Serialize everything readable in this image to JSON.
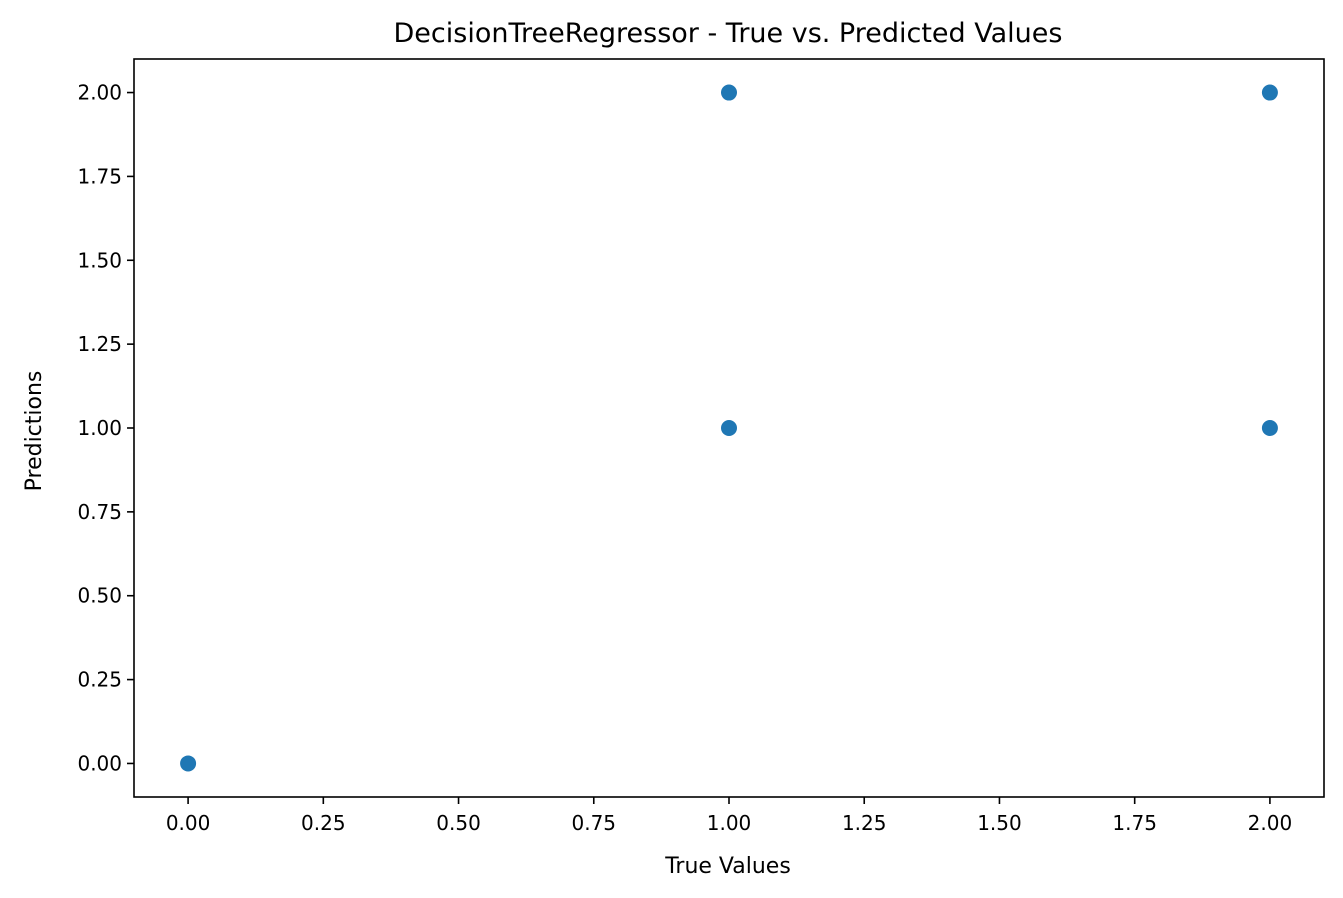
{
  "chart_data": {
    "type": "scatter",
    "title": "DecisionTreeRegressor - True vs. Predicted Values",
    "xlabel": "True Values",
    "ylabel": "Predictions",
    "xlim": [
      -0.1,
      2.1
    ],
    "ylim": [
      -0.1,
      2.1
    ],
    "xticks": [
      0.0,
      0.25,
      0.5,
      0.75,
      1.0,
      1.25,
      1.5,
      1.75,
      2.0
    ],
    "yticks": [
      0.0,
      0.25,
      0.5,
      0.75,
      1.0,
      1.25,
      1.5,
      1.75,
      2.0
    ],
    "xtick_labels": [
      "0.00",
      "0.25",
      "0.50",
      "0.75",
      "1.00",
      "1.25",
      "1.50",
      "1.75",
      "2.00"
    ],
    "ytick_labels": [
      "0.00",
      "0.25",
      "0.50",
      "0.75",
      "1.00",
      "1.25",
      "1.50",
      "1.75",
      "2.00"
    ],
    "grid": false,
    "legend": false,
    "marker_color": "#1f77b4",
    "points": [
      {
        "x": 0,
        "y": 0
      },
      {
        "x": 1,
        "y": 1
      },
      {
        "x": 1,
        "y": 2
      },
      {
        "x": 2,
        "y": 1
      },
      {
        "x": 2,
        "y": 2
      }
    ]
  }
}
